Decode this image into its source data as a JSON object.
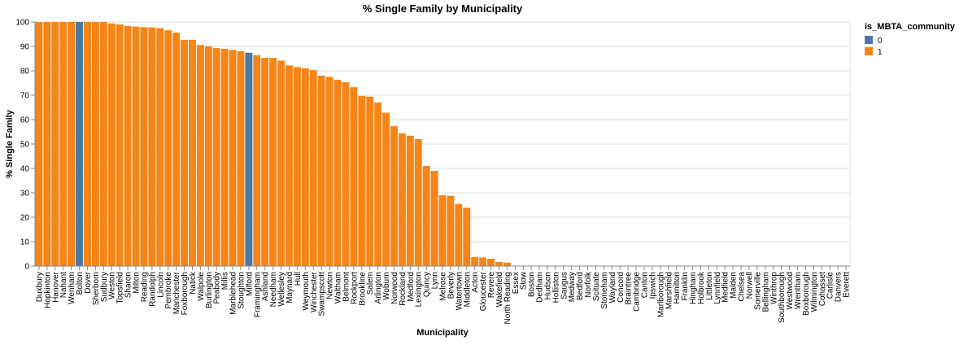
{
  "chart_data": {
    "type": "bar",
    "title": "% Single Family by Municipality",
    "xlabel": "Municipality",
    "ylabel": "% Single Family",
    "ylim": [
      0,
      100
    ],
    "yticks": [
      0,
      10,
      20,
      30,
      40,
      50,
      60,
      70,
      80,
      90,
      100
    ],
    "grid": true,
    "legend": {
      "title": "is_MBTA_community",
      "position": "top-right",
      "entries": [
        {
          "label": "0",
          "color": "#4c78a8"
        },
        {
          "label": "1",
          "color": "#f58518"
        }
      ]
    },
    "categories": [
      "Duxbury",
      "Hopkinton",
      "Hanover",
      "Nahant",
      "Wenham",
      "Bolton",
      "Dover",
      "Sherborn",
      "Sudbury",
      "Weston",
      "Topsfield",
      "Sharon",
      "Milton",
      "Reading",
      "Randolph",
      "Lincoln",
      "Pembroke",
      "Manchester",
      "Foxborough",
      "Natick",
      "Walpole",
      "Burlington",
      "Peabody",
      "Millis",
      "Marblehead",
      "Stoughton",
      "Milford",
      "Framingham",
      "Ashland",
      "Needham",
      "Wellesley",
      "Maynard",
      "Hull",
      "Weymouth",
      "Winchester",
      "Swampscott",
      "Newton",
      "Waltham",
      "Belmont",
      "Rockport",
      "Brookline",
      "Salem",
      "Arlington",
      "Woburn",
      "Norwood",
      "Rockland",
      "Medford",
      "Lexington",
      "Quincy",
      "Lynn",
      "Melrose",
      "Beverly",
      "Watertown",
      "Middleton",
      "Acton",
      "Gloucester",
      "Revere",
      "Wakefield",
      "North Reading",
      "Essex",
      "Stow",
      "Boston",
      "Dedham",
      "Hudson",
      "Holliston",
      "Saugus",
      "Medway",
      "Bedford",
      "Norfolk",
      "Scituate",
      "Stoneham",
      "Wayland",
      "Concord",
      "Braintree",
      "Cambridge",
      "Canton",
      "Ipswich",
      "Marlborough",
      "Marshfield",
      "Hamilton",
      "Franklin",
      "Hingham",
      "Holbrook",
      "Littleton",
      "Lynnfield",
      "Medfield",
      "Malden",
      "Chelsea",
      "Norwell",
      "Somerville",
      "Bellingham",
      "Winthrop",
      "Southborough",
      "Westwood",
      "Wrentham",
      "Boxborough",
      "Wilmington",
      "Cohasset",
      "Carlisle",
      "Danvers",
      "Everett"
    ],
    "values": [
      100,
      100,
      100,
      100,
      100,
      100,
      100,
      100,
      100,
      99.4,
      99,
      98.4,
      98.1,
      97.9,
      97.8,
      97.5,
      96.6,
      95.6,
      92.7,
      92.7,
      90.6,
      90,
      89.3,
      89,
      88.6,
      88,
      87.4,
      86.4,
      85.3,
      85.3,
      84.2,
      82.2,
      81.5,
      81,
      80.3,
      78,
      77.5,
      76.3,
      75.3,
      73.3,
      69.7,
      69.4,
      67,
      62.8,
      57.3,
      54.4,
      53.4,
      52,
      41,
      39,
      29,
      28.8,
      25.5,
      23.9,
      3.7,
      3.5,
      3,
      1.7,
      1.4,
      0,
      0,
      0,
      0,
      0,
      0,
      0,
      0,
      0,
      0,
      0,
      0,
      0,
      0,
      0,
      0,
      0,
      0,
      0,
      0,
      0,
      0,
      0,
      0,
      0,
      0,
      0,
      0,
      0,
      0,
      0,
      0,
      0,
      0,
      0,
      0,
      0,
      0,
      0,
      0,
      0,
      0
    ],
    "mbta": [
      1,
      1,
      1,
      1,
      1,
      0,
      1,
      1,
      1,
      1,
      1,
      1,
      1,
      1,
      1,
      1,
      1,
      1,
      1,
      1,
      1,
      1,
      1,
      1,
      1,
      1,
      0,
      1,
      1,
      1,
      1,
      1,
      1,
      1,
      1,
      1,
      1,
      1,
      1,
      1,
      1,
      1,
      1,
      1,
      1,
      1,
      1,
      1,
      1,
      1,
      1,
      1,
      1,
      1,
      1,
      1,
      1,
      1,
      1,
      1,
      1,
      1,
      1,
      1,
      1,
      1,
      1,
      1,
      1,
      1,
      1,
      1,
      1,
      1,
      1,
      1,
      1,
      1,
      1,
      1,
      1,
      1,
      1,
      1,
      1,
      1,
      1,
      1,
      1,
      1,
      1,
      1,
      1,
      1,
      1,
      1,
      1,
      1,
      1,
      1,
      1
    ]
  }
}
